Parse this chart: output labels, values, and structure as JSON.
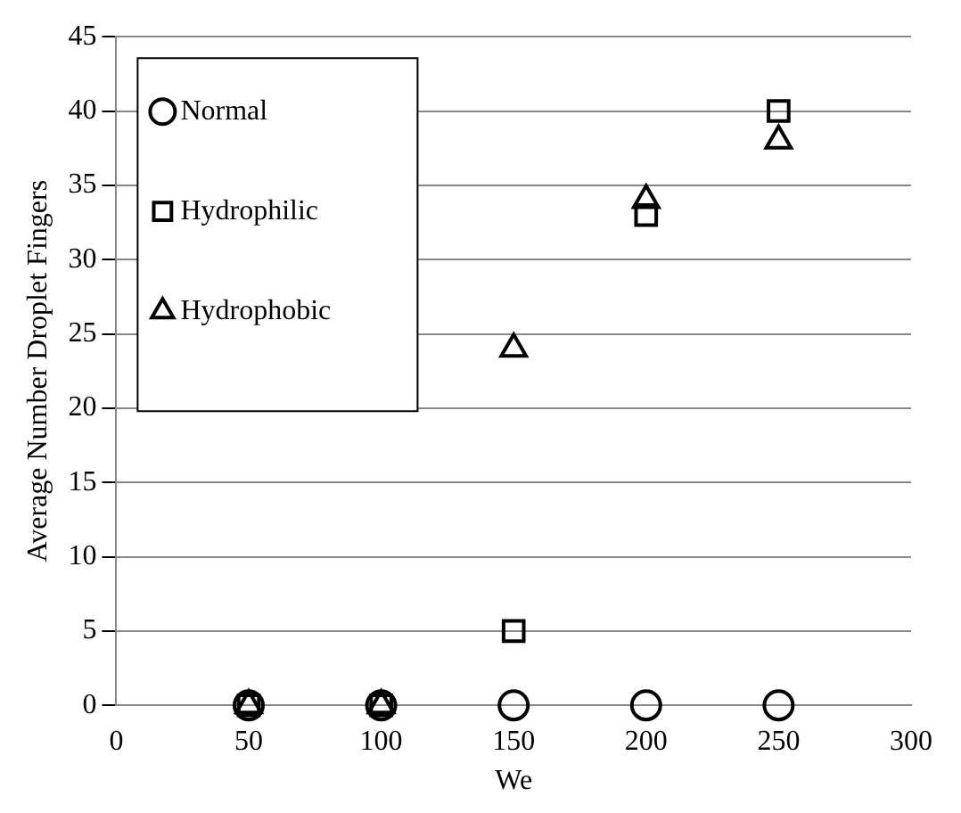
{
  "chart_data": {
    "type": "scatter",
    "xlabel": "We",
    "ylabel": "Average Number Droplet Fingers",
    "x": [
      50,
      100,
      150,
      200,
      250
    ],
    "series": [
      {
        "name": "Normal",
        "color": "#000000",
        "marker": "circle",
        "values": [
          0,
          0,
          0,
          0,
          0
        ]
      },
      {
        "name": "Hydrophilic",
        "color": "#000000",
        "marker": "square",
        "values": [
          0,
          0,
          5,
          33,
          40
        ]
      },
      {
        "name": "Hydrophobic",
        "color": "#000000",
        "marker": "triangle",
        "values": [
          0,
          0,
          24,
          34,
          38
        ]
      }
    ],
    "xlim": [
      0,
      300
    ],
    "xticks": [
      0,
      50,
      100,
      150,
      200,
      250,
      300
    ],
    "ylim": [
      0,
      45
    ],
    "yticks": [
      0,
      5,
      10,
      15,
      20,
      25,
      30,
      35,
      40,
      45
    ],
    "grid": "y",
    "legend": "top left"
  }
}
